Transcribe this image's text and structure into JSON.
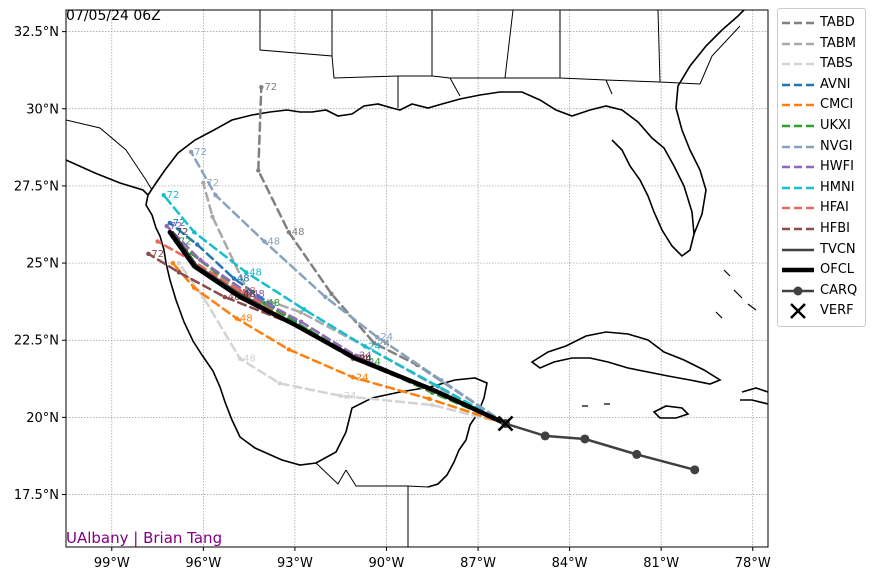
{
  "timestamp": "07/05/24 06Z",
  "credit": "UAlbany | Brian Tang",
  "axes": {
    "lat_labels": [
      "32.5°N",
      "30°N",
      "27.5°N",
      "25°N",
      "22.5°N",
      "20°N",
      "17.5°N"
    ],
    "lon_labels": [
      "99°W",
      "96°W",
      "93°W",
      "90°W",
      "87°W",
      "84°W",
      "81°W",
      "78°W"
    ]
  },
  "legend": [
    {
      "name": "TABD",
      "color": "#808080",
      "style": "dashed"
    },
    {
      "name": "TABM",
      "color": "#a9a9a9",
      "style": "dashed"
    },
    {
      "name": "TABS",
      "color": "#d3d3d3",
      "style": "dashed"
    },
    {
      "name": "AVNI",
      "color": "#1f77b4",
      "style": "dashed"
    },
    {
      "name": "CMCI",
      "color": "#ff7f0e",
      "style": "dashed"
    },
    {
      "name": "UKXI",
      "color": "#2ca02c",
      "style": "dashed"
    },
    {
      "name": "NVGI",
      "color": "#87a2be",
      "style": "dashed"
    },
    {
      "name": "HWFI",
      "color": "#9467bd",
      "style": "dashed"
    },
    {
      "name": "HMNI",
      "color": "#17becf",
      "style": "dashed"
    },
    {
      "name": "HFAI",
      "color": "#e8685e",
      "style": "dashed"
    },
    {
      "name": "HFBI",
      "color": "#8c4a4a",
      "style": "dashed"
    },
    {
      "name": "TVCN",
      "color": "#404040",
      "style": "solid"
    },
    {
      "name": "OFCL",
      "color": "#000000",
      "style": "solid-thick"
    },
    {
      "name": "CARQ",
      "color": "#404040",
      "style": "solid-marker"
    },
    {
      "name": "VERF",
      "color": "#000000",
      "style": "x-marker"
    }
  ],
  "chart_data": {
    "type": "scatter",
    "title": "07/05/24 06Z",
    "xlim": [
      -100.5,
      -77.5
    ],
    "ylim": [
      15.8,
      33.2
    ],
    "tracks": [
      {
        "name": "TABD",
        "color": "#808080",
        "points": [
          [
            -86.1,
            19.8
          ],
          [
            -89.0,
            21.7
          ],
          [
            -90.4,
            22.4
          ],
          [
            -91.8,
            24.0
          ],
          [
            -93.2,
            26.0
          ],
          [
            -94.2,
            28.0
          ],
          [
            -94.1,
            30.7
          ]
        ],
        "labels": [
          [
            -90.4,
            22.4,
            "24"
          ],
          [
            -93.2,
            26.0,
            "48"
          ],
          [
            -94.1,
            30.7,
            "72"
          ]
        ]
      },
      {
        "name": "TABM",
        "color": "#a9a9a9",
        "points": [
          [
            -86.1,
            19.8
          ],
          [
            -88.0,
            20.8
          ],
          [
            -90.7,
            22.3
          ],
          [
            -92.8,
            23.4
          ],
          [
            -94.5,
            24.0
          ],
          [
            -95.7,
            26.5
          ],
          [
            -96.0,
            27.6
          ]
        ],
        "labels": [
          [
            -90.7,
            22.3,
            "24"
          ],
          [
            -94.5,
            24.0,
            "48"
          ],
          [
            -96.0,
            27.6,
            "72"
          ]
        ]
      },
      {
        "name": "TABS",
        "color": "#d3d3d3",
        "points": [
          [
            -86.1,
            19.8
          ],
          [
            -88.5,
            20.4
          ],
          [
            -91.5,
            20.7
          ],
          [
            -93.5,
            21.1
          ],
          [
            -94.8,
            21.9
          ],
          [
            -96.0,
            23.9
          ],
          [
            -96.8,
            25.0
          ]
        ],
        "labels": [
          [
            -91.5,
            20.7,
            "24"
          ],
          [
            -94.8,
            21.9,
            "48"
          ]
        ]
      },
      {
        "name": "AVNI",
        "color": "#1f77b4",
        "points": [
          [
            -86.1,
            19.8
          ],
          [
            -88.5,
            20.9
          ],
          [
            -91.0,
            21.9
          ],
          [
            -93.0,
            23.1
          ],
          [
            -95.0,
            24.5
          ],
          [
            -96.2,
            25.6
          ],
          [
            -97.1,
            26.3
          ]
        ],
        "labels": [
          [
            -91.0,
            21.9,
            "24"
          ],
          [
            -95.0,
            24.5,
            "48"
          ],
          [
            -97.1,
            26.3,
            "72"
          ]
        ]
      },
      {
        "name": "CMCI",
        "color": "#ff7f0e",
        "points": [
          [
            -86.1,
            19.8
          ],
          [
            -88.6,
            20.6
          ],
          [
            -91.1,
            21.3
          ],
          [
            -93.2,
            22.2
          ],
          [
            -94.9,
            23.2
          ],
          [
            -96.3,
            24.2
          ],
          [
            -97.0,
            25.0
          ]
        ],
        "labels": [
          [
            -91.1,
            21.3,
            "24"
          ],
          [
            -94.9,
            23.2,
            "48"
          ]
        ]
      },
      {
        "name": "UKXI",
        "color": "#2ca02c",
        "points": [
          [
            -86.1,
            19.8
          ],
          [
            -88.5,
            20.8
          ],
          [
            -90.7,
            21.8
          ],
          [
            -92.5,
            22.8
          ],
          [
            -94.0,
            23.7
          ],
          [
            -95.6,
            24.7
          ],
          [
            -96.9,
            25.7
          ]
        ],
        "labels": [
          [
            -90.7,
            21.8,
            "24"
          ],
          [
            -94.0,
            23.7,
            "48"
          ],
          [
            -96.9,
            25.7,
            "72"
          ]
        ]
      },
      {
        "name": "NVGI",
        "color": "#87a2be",
        "points": [
          [
            -86.1,
            19.8
          ],
          [
            -88.2,
            21.2
          ],
          [
            -90.3,
            22.6
          ],
          [
            -92.0,
            23.9
          ],
          [
            -94.0,
            25.7
          ],
          [
            -95.6,
            27.2
          ],
          [
            -96.4,
            28.6
          ]
        ],
        "labels": [
          [
            -90.3,
            22.6,
            "24"
          ],
          [
            -94.0,
            25.7,
            "48"
          ],
          [
            -96.4,
            28.6,
            "72"
          ]
        ]
      },
      {
        "name": "HWFI",
        "color": "#9467bd",
        "points": [
          [
            -86.1,
            19.8
          ],
          [
            -88.6,
            20.9
          ],
          [
            -91.0,
            22.0
          ],
          [
            -92.8,
            23.1
          ],
          [
            -94.5,
            24.0
          ],
          [
            -96.1,
            25.1
          ],
          [
            -97.2,
            26.2
          ]
        ],
        "labels": [
          [
            -91.0,
            22.0,
            "24"
          ],
          [
            -94.5,
            24.0,
            "48"
          ],
          [
            -97.2,
            26.2,
            "72"
          ]
        ]
      },
      {
        "name": "HMNI",
        "color": "#17becf",
        "points": [
          [
            -86.1,
            19.8
          ],
          [
            -88.3,
            21.0
          ],
          [
            -90.7,
            22.3
          ],
          [
            -92.7,
            23.5
          ],
          [
            -94.6,
            24.7
          ],
          [
            -96.3,
            26.0
          ],
          [
            -97.3,
            27.2
          ]
        ],
        "labels": [
          [
            -90.7,
            22.3,
            "24"
          ],
          [
            -94.6,
            24.7,
            "48"
          ],
          [
            -97.3,
            27.2,
            "72"
          ]
        ]
      },
      {
        "name": "HFAI",
        "color": "#e8685e",
        "points": [
          [
            -86.1,
            19.8
          ],
          [
            -88.6,
            20.9
          ],
          [
            -91.0,
            21.9
          ],
          [
            -93.0,
            23.0
          ],
          [
            -94.8,
            24.1
          ],
          [
            -96.4,
            25.1
          ],
          [
            -97.5,
            25.7
          ]
        ],
        "labels": [
          [
            -91.0,
            21.9,
            "24"
          ],
          [
            -94.8,
            24.1,
            "48"
          ]
        ]
      },
      {
        "name": "HFBI",
        "color": "#8c4a4a",
        "points": [
          [
            -86.1,
            19.8
          ],
          [
            -88.6,
            20.9
          ],
          [
            -91.1,
            21.9
          ],
          [
            -93.0,
            23.0
          ],
          [
            -95.3,
            23.9
          ],
          [
            -96.8,
            24.7
          ],
          [
            -97.8,
            25.3
          ]
        ],
        "labels": [
          [
            -91.1,
            21.9,
            "24"
          ],
          [
            -95.3,
            23.9,
            "48"
          ],
          [
            -97.8,
            25.3,
            "72"
          ]
        ]
      },
      {
        "name": "TVCN",
        "color": "#404040",
        "points": [
          [
            -86.1,
            19.8
          ],
          [
            -88.5,
            20.9
          ],
          [
            -91.0,
            21.9
          ],
          [
            -93.0,
            23.0
          ],
          [
            -94.8,
            24.0
          ],
          [
            -96.2,
            24.9
          ],
          [
            -97.0,
            26.0
          ]
        ],
        "labels": [
          [
            -91.0,
            21.9,
            "24"
          ],
          [
            -94.8,
            24.0,
            "48"
          ],
          [
            -97.0,
            26.0,
            "72"
          ]
        ]
      },
      {
        "name": "OFCL",
        "color": "#000000",
        "points": [
          [
            -86.1,
            19.8
          ],
          [
            -88.5,
            20.9
          ],
          [
            -91.0,
            21.9
          ],
          [
            -93.0,
            23.0
          ],
          [
            -94.8,
            23.9
          ],
          [
            -96.3,
            24.9
          ],
          [
            -97.1,
            26.0
          ]
        ],
        "labels": []
      },
      {
        "name": "CARQ",
        "color": "#404040",
        "points": [
          [
            -79.9,
            18.3
          ],
          [
            -81.8,
            18.8
          ],
          [
            -83.5,
            19.3
          ],
          [
            -84.8,
            19.4
          ],
          [
            -86.1,
            19.8
          ]
        ],
        "labels": []
      }
    ],
    "verf": [
      -86.1,
      19.8
    ]
  }
}
